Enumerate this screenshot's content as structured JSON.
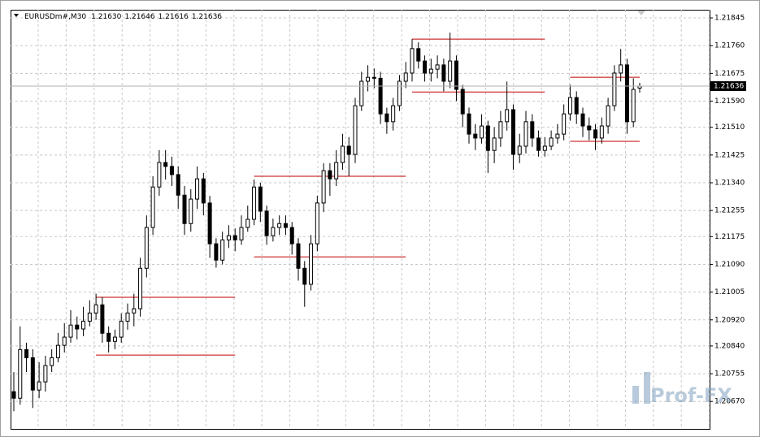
{
  "chart_data": {
    "type": "candlestick",
    "symbol": "EURUSDm#,M30",
    "header_labels": [
      "1.21630",
      "1.21646",
      "1.21616",
      "1.21636"
    ],
    "watermark": "Prof-FX",
    "ylim": [
      1.20586,
      1.2187
    ],
    "yticks": [
      1.21845,
      {
        "value": 1.2176,
        "label": "1.21760"
      },
      1.21675,
      {
        "value": 1.2159,
        "label": "1.21590"
      },
      {
        "value": 1.2151,
        "label": "1.21510"
      },
      1.21425,
      {
        "value": 1.2134,
        "label": "1.21340"
      },
      1.21255,
      1.21175,
      {
        "value": 1.2109,
        "label": "1.21090"
      },
      1.21005,
      {
        "value": 1.2092,
        "label": "1.20920"
      },
      {
        "value": 1.2084,
        "label": "1.20840"
      },
      1.20755,
      {
        "value": 1.2067,
        "label": "1.20670"
      }
    ],
    "grid": true,
    "last_price": 1.21636,
    "up_color": "#ffffff",
    "down_color": "#000000",
    "wick_color": "#000000",
    "level_color": "#c00000",
    "levels": [
      {
        "value": 1.20989,
        "from": 13,
        "to": 35
      },
      {
        "value": 1.20812,
        "from": 13,
        "to": 35
      },
      {
        "value": 1.2136,
        "from": 38,
        "to": 62
      },
      {
        "value": 1.21113,
        "from": 38,
        "to": 62
      },
      {
        "value": 1.2178,
        "from": 63,
        "to": 84
      },
      {
        "value": 1.21618,
        "from": 63,
        "to": 84
      },
      {
        "value": 1.21663,
        "from": 88,
        "to": 99
      },
      {
        "value": 1.21467,
        "from": 88,
        "to": 99
      }
    ],
    "ohlc": [
      [
        1.207,
        1.2076,
        1.2064,
        1.2068
      ],
      [
        1.2068,
        1.209,
        1.2066,
        1.20829
      ],
      [
        1.20829,
        1.2085,
        1.2076,
        1.20804
      ],
      [
        1.20804,
        1.2083,
        1.2065,
        1.20705
      ],
      [
        1.20705,
        1.2079,
        1.2068,
        1.2073
      ],
      [
        1.2073,
        1.2081,
        1.207,
        1.2078
      ],
      [
        1.2078,
        1.2083,
        1.2076,
        1.20804
      ],
      [
        1.20804,
        1.2088,
        1.2079,
        1.20842
      ],
      [
        1.20842,
        1.2091,
        1.2082,
        1.20867
      ],
      [
        1.20867,
        1.2095,
        1.2085,
        1.20904
      ],
      [
        1.20904,
        1.2093,
        1.2086,
        1.20892
      ],
      [
        1.20892,
        1.2096,
        1.2087,
        1.20916
      ],
      [
        1.20916,
        1.2098,
        1.209,
        1.20941
      ],
      [
        1.20941,
        1.21,
        1.2092,
        1.20966
      ],
      [
        1.20966,
        1.2099,
        1.2085,
        1.20879
      ],
      [
        1.20879,
        1.209,
        1.2082,
        1.20854
      ],
      [
        1.20854,
        1.2089,
        1.2083,
        1.20867
      ],
      [
        1.20867,
        1.2094,
        1.2085,
        1.20916
      ],
      [
        1.20916,
        1.2097,
        1.2089,
        1.20941
      ],
      [
        1.20941,
        1.21,
        1.209,
        1.20954
      ],
      [
        1.20954,
        1.2111,
        1.2093,
        1.21078
      ],
      [
        1.21078,
        1.2124,
        1.2105,
        1.21203
      ],
      [
        1.21203,
        1.2136,
        1.2118,
        1.21327
      ],
      [
        1.21327,
        1.2144,
        1.213,
        1.21402
      ],
      [
        1.21402,
        1.2144,
        1.2135,
        1.2139
      ],
      [
        1.2139,
        1.2142,
        1.2133,
        1.21365
      ],
      [
        1.21365,
        1.2139,
        1.2126,
        1.21302
      ],
      [
        1.21302,
        1.2133,
        1.2118,
        1.21215
      ],
      [
        1.21215,
        1.2132,
        1.2119,
        1.2129
      ],
      [
        1.2129,
        1.2139,
        1.2126,
        1.21352
      ],
      [
        1.21352,
        1.2137,
        1.2124,
        1.21278
      ],
      [
        1.21278,
        1.213,
        1.2111,
        1.21153
      ],
      [
        1.21153,
        1.2117,
        1.2108,
        1.21103
      ],
      [
        1.21103,
        1.2119,
        1.2109,
        1.21165
      ],
      [
        1.21165,
        1.2121,
        1.2114,
        1.21178
      ],
      [
        1.21178,
        1.212,
        1.2113,
        1.21165
      ],
      [
        1.21165,
        1.2124,
        1.2115,
        1.21203
      ],
      [
        1.21203,
        1.2127,
        1.2119,
        1.21228
      ],
      [
        1.21228,
        1.2135,
        1.2121,
        1.21327
      ],
      [
        1.21327,
        1.2134,
        1.2122,
        1.21253
      ],
      [
        1.21253,
        1.2127,
        1.2115,
        1.21178
      ],
      [
        1.21178,
        1.2123,
        1.2116,
        1.21203
      ],
      [
        1.21203,
        1.2124,
        1.2118,
        1.21215
      ],
      [
        1.21215,
        1.2124,
        1.2118,
        1.21203
      ],
      [
        1.21203,
        1.2122,
        1.2112,
        1.21153
      ],
      [
        1.21153,
        1.2117,
        1.2104,
        1.21078
      ],
      [
        1.21078,
        1.211,
        1.2096,
        1.21029
      ],
      [
        1.21029,
        1.2118,
        1.2101,
        1.21153
      ],
      [
        1.21153,
        1.213,
        1.2113,
        1.21278
      ],
      [
        1.21278,
        1.214,
        1.2125,
        1.21377
      ],
      [
        1.21377,
        1.214,
        1.213,
        1.21352
      ],
      [
        1.21352,
        1.2144,
        1.2133,
        1.21402
      ],
      [
        1.21402,
        1.2149,
        1.2138,
        1.21452
      ],
      [
        1.21452,
        1.2148,
        1.2136,
        1.21427
      ],
      [
        1.21427,
        1.216,
        1.214,
        1.21576
      ],
      [
        1.21576,
        1.2168,
        1.2156,
        1.21651
      ],
      [
        1.21651,
        1.217,
        1.2162,
        1.21663
      ],
      [
        1.21663,
        1.2169,
        1.2163,
        1.2166
      ],
      [
        1.2166,
        1.2168,
        1.2152,
        1.21551
      ],
      [
        1.21551,
        1.2157,
        1.2149,
        1.21527
      ],
      [
        1.21527,
        1.216,
        1.215,
        1.21576
      ],
      [
        1.21576,
        1.2167,
        1.2156,
        1.21651
      ],
      [
        1.21651,
        1.2171,
        1.2163,
        1.21676
      ],
      [
        1.21676,
        1.2178,
        1.2165,
        1.21751
      ],
      [
        1.21751,
        1.2177,
        1.2169,
        1.21713
      ],
      [
        1.21713,
        1.2173,
        1.2165,
        1.21676
      ],
      [
        1.21676,
        1.2172,
        1.2165,
        1.21688
      ],
      [
        1.21688,
        1.2173,
        1.2166,
        1.21701
      ],
      [
        1.21701,
        1.2172,
        1.2162,
        1.21651
      ],
      [
        1.21651,
        1.218,
        1.2163,
        1.21713
      ],
      [
        1.21713,
        1.2173,
        1.2159,
        1.21626
      ],
      [
        1.21626,
        1.2164,
        1.2151,
        1.21551
      ],
      [
        1.21551,
        1.2157,
        1.2146,
        1.21489
      ],
      [
        1.21489,
        1.2152,
        1.2144,
        1.21477
      ],
      [
        1.21477,
        1.2155,
        1.2146,
        1.21514
      ],
      [
        1.21514,
        1.2153,
        1.2137,
        1.21439
      ],
      [
        1.21439,
        1.2151,
        1.214,
        1.21477
      ],
      [
        1.21477,
        1.2156,
        1.2145,
        1.21527
      ],
      [
        1.21527,
        1.2165,
        1.215,
        1.21564
      ],
      [
        1.21564,
        1.2158,
        1.2138,
        1.21427
      ],
      [
        1.21427,
        1.2149,
        1.214,
        1.21452
      ],
      [
        1.21452,
        1.2156,
        1.2143,
        1.21527
      ],
      [
        1.21527,
        1.2155,
        1.2145,
        1.21477
      ],
      [
        1.21477,
        1.215,
        1.2142,
        1.21439
      ],
      [
        1.21439,
        1.2148,
        1.2142,
        1.21452
      ],
      [
        1.21452,
        1.215,
        1.2144,
        1.21477
      ],
      [
        1.21477,
        1.2152,
        1.2146,
        1.21489
      ],
      [
        1.21489,
        1.2158,
        1.2147,
        1.21551
      ],
      [
        1.21551,
        1.2164,
        1.2153,
        1.21601
      ],
      [
        1.21601,
        1.2162,
        1.2152,
        1.21551
      ],
      [
        1.21551,
        1.2157,
        1.2148,
        1.21514
      ],
      [
        1.21514,
        1.2154,
        1.2147,
        1.21502
      ],
      [
        1.21502,
        1.2152,
        1.2144,
        1.21477
      ],
      [
        1.21477,
        1.2154,
        1.2146,
        1.21514
      ],
      [
        1.21514,
        1.216,
        1.2149,
        1.21576
      ],
      [
        1.21576,
        1.217,
        1.2156,
        1.21676
      ],
      [
        1.21676,
        1.2175,
        1.2165,
        1.21701
      ],
      [
        1.21701,
        1.2172,
        1.2149,
        1.21527
      ],
      [
        1.21527,
        1.2166,
        1.2151,
        1.21626
      ],
      [
        1.2163,
        1.21646,
        1.21616,
        1.21636
      ]
    ]
  }
}
